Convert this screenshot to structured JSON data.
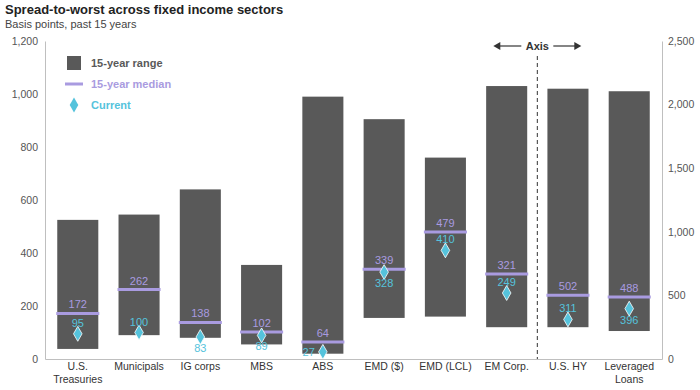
{
  "chart_data": {
    "type": "range",
    "title": "Spread-to-worst across fixed income sectors",
    "subtitle": "Basis points, past 15 years",
    "categories": [
      "U.S. Treasuries",
      "Municipals",
      "IG corps",
      "MBS",
      "ABS",
      "EMD ($)",
      "EMD (LCL)",
      "EM Corp.",
      "U.S. HY",
      "Leveraged Loans"
    ],
    "axis": [
      "y",
      "y",
      "y",
      "y",
      "y",
      "y",
      "y",
      "y",
      "y2",
      "y2"
    ],
    "series": [
      {
        "name": "15-year range",
        "type": "floating_bar",
        "color": "#595959",
        "low": [
          38,
          90,
          80,
          55,
          20,
          155,
          160,
          120,
          250,
          220
        ],
        "high": [
          525,
          545,
          640,
          355,
          990,
          905,
          760,
          1030,
          2125,
          2105
        ]
      },
      {
        "name": "15-year median",
        "type": "tick",
        "color": "#a99be0",
        "values": [
          172,
          262,
          138,
          102,
          64,
          339,
          479,
          321,
          502,
          488
        ]
      },
      {
        "name": "Current",
        "type": "scatter",
        "marker": "diamond",
        "color": "#55c3dc",
        "values": [
          95,
          100,
          83,
          89,
          27,
          328,
          410,
          249,
          311,
          396
        ]
      }
    ],
    "ylim": [
      0,
      1200
    ],
    "yticks": [
      0,
      200,
      400,
      600,
      800,
      {
        "value": 1000,
        "label": "1,000"
      },
      {
        "value": 1200,
        "label": "1,200"
      }
    ],
    "y2lim": [
      0,
      2500
    ],
    "y2ticks": [
      0,
      500,
      {
        "value": 1000,
        "label": "1,000"
      },
      {
        "value": 1500,
        "label": "1,500"
      },
      {
        "value": 2000,
        "label": "2,000"
      },
      {
        "value": 2500,
        "label": "2,500"
      }
    ],
    "annotation": "Axis",
    "legend": "upper left",
    "data_labels": true,
    "grid": false
  }
}
